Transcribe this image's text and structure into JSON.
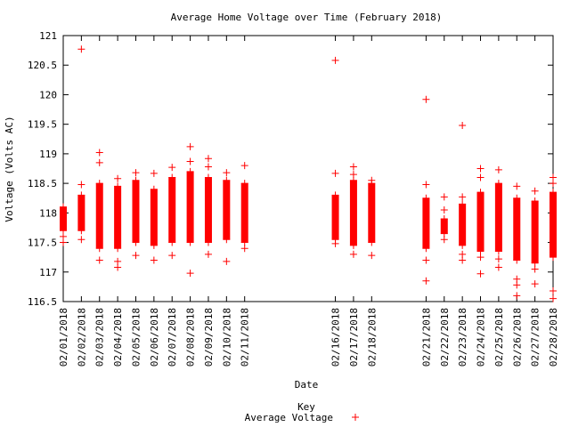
{
  "chart_data": {
    "type": "scatter",
    "title": "Average Home Voltage over Time (February 2018)",
    "xlabel": "Date",
    "ylabel": "Voltage (Volts AC)",
    "ylim": [
      116.5,
      121
    ],
    "yticks": [
      "116.5",
      "117",
      "117.5",
      "118",
      "118.5",
      "119",
      "119.5",
      "120",
      "120.5",
      "121"
    ],
    "legend": {
      "title": "Key",
      "position": "bottom-center"
    },
    "series": [
      {
        "name": "Average Voltage",
        "color": "#ff0000",
        "marker": "+",
        "days": [
          {
            "date": "02/01/2018",
            "day": 1,
            "low": 117.7,
            "high": 118.1,
            "outliers": [
              117.5,
              117.6,
              118.1
            ]
          },
          {
            "date": "02/02/2018",
            "day": 2,
            "low": 117.7,
            "high": 118.3,
            "outliers": [
              120.77,
              118.48,
              117.55
            ]
          },
          {
            "date": "02/03/2018",
            "day": 3,
            "low": 117.4,
            "high": 118.5,
            "outliers": [
              119.02,
              118.85,
              117.2
            ]
          },
          {
            "date": "02/04/2018",
            "day": 4,
            "low": 117.4,
            "high": 118.45,
            "outliers": [
              117.08,
              117.18,
              118.58
            ]
          },
          {
            "date": "02/05/2018",
            "day": 5,
            "low": 117.5,
            "high": 118.55,
            "outliers": [
              118.68,
              117.28
            ]
          },
          {
            "date": "02/06/2018",
            "day": 6,
            "low": 117.45,
            "high": 118.4,
            "outliers": [
              118.67,
              117.2
            ]
          },
          {
            "date": "02/07/2018",
            "day": 7,
            "low": 117.5,
            "high": 118.6,
            "outliers": [
              118.77,
              117.28
            ]
          },
          {
            "date": "02/08/2018",
            "day": 8,
            "low": 117.5,
            "high": 118.7,
            "outliers": [
              119.12,
              118.87,
              116.98
            ]
          },
          {
            "date": "02/09/2018",
            "day": 9,
            "low": 117.5,
            "high": 118.6,
            "outliers": [
              118.92,
              118.78,
              117.3
            ]
          },
          {
            "date": "02/10/2018",
            "day": 10,
            "low": 117.55,
            "high": 118.55,
            "outliers": [
              118.68,
              117.18
            ]
          },
          {
            "date": "02/11/2018",
            "day": 11,
            "low": 117.5,
            "high": 118.5,
            "outliers": [
              118.8,
              117.4
            ]
          },
          {
            "date": "02/16/2018",
            "day": 16,
            "low": 117.55,
            "high": 118.3,
            "outliers": [
              120.58,
              118.67,
              117.48
            ]
          },
          {
            "date": "02/17/2018",
            "day": 17,
            "low": 117.45,
            "high": 118.55,
            "outliers": [
              118.78,
              118.65,
              117.3
            ]
          },
          {
            "date": "02/18/2018",
            "day": 18,
            "low": 117.5,
            "high": 118.5,
            "outliers": [
              118.55,
              117.28
            ]
          },
          {
            "date": "02/21/2018",
            "day": 21,
            "low": 117.4,
            "high": 118.25,
            "outliers": [
              119.92,
              118.48,
              116.85,
              117.2
            ]
          },
          {
            "date": "02/22/2018",
            "day": 22,
            "low": 117.65,
            "high": 117.9,
            "outliers": [
              118.27,
              118.05,
              117.55
            ]
          },
          {
            "date": "02/23/2018",
            "day": 23,
            "low": 117.45,
            "high": 118.15,
            "outliers": [
              119.48,
              118.27,
              117.2,
              117.3
            ]
          },
          {
            "date": "02/24/2018",
            "day": 24,
            "low": 117.35,
            "high": 118.35,
            "outliers": [
              118.75,
              118.6,
              116.97,
              117.25
            ]
          },
          {
            "date": "02/25/2018",
            "day": 25,
            "low": 117.35,
            "high": 118.5,
            "outliers": [
              118.73,
              117.08,
              117.22
            ]
          },
          {
            "date": "02/26/2018",
            "day": 26,
            "low": 117.2,
            "high": 118.25,
            "outliers": [
              118.45,
              116.88,
              116.78,
              116.6
            ]
          },
          {
            "date": "02/27/2018",
            "day": 27,
            "low": 117.15,
            "high": 118.2,
            "outliers": [
              118.37,
              116.8,
              117.05
            ]
          },
          {
            "date": "02/28/2018",
            "day": 28,
            "low": 117.25,
            "high": 118.35,
            "outliers": [
              118.6,
              118.5,
              116.68,
              116.55
            ]
          }
        ]
      }
    ]
  }
}
